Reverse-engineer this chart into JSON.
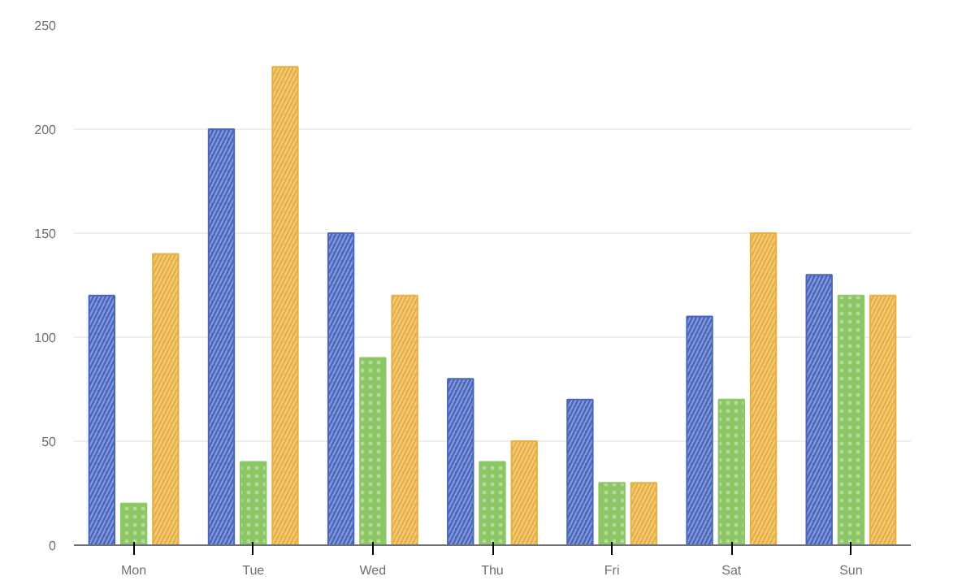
{
  "chart_data": {
    "type": "bar",
    "categories": [
      "Mon",
      "Tue",
      "Wed",
      "Thu",
      "Fri",
      "Sat",
      "Sun"
    ],
    "series": [
      {
        "color": "#4a67c0",
        "values": [
          120,
          200,
          150,
          80,
          70,
          110,
          130
        ]
      },
      {
        "color": "#8cc665",
        "values": [
          20,
          40,
          90,
          40,
          30,
          70,
          120
        ]
      },
      {
        "color": "#e8b040",
        "values": [
          140,
          230,
          120,
          50,
          30,
          150,
          120
        ]
      }
    ],
    "ylim": [
      0,
      250
    ],
    "yticks": [
      0,
      50,
      100,
      150,
      200,
      250
    ],
    "grid": "y"
  }
}
